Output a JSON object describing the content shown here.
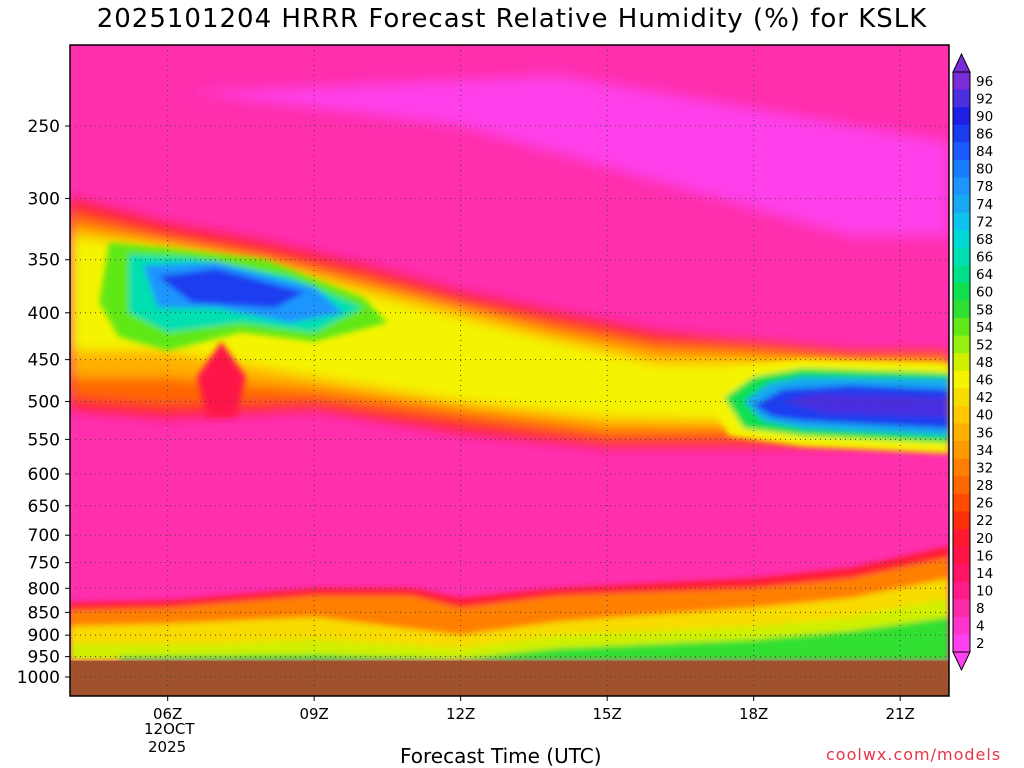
{
  "title": "2025101204 HRRR Forecast Relative Humidity (%) for KSLK",
  "credit": "coolwx.com/models",
  "date_labels": {
    "line1": "12OCT",
    "line2": "2025"
  },
  "colors": {
    "ground": "#a0522d",
    "background_rh": "#ff2fae",
    "grid": "#444444"
  },
  "chart_data": {
    "type": "heatmap",
    "title": "2025101204 HRRR Forecast Relative Humidity (%) for KSLK",
    "xlabel": "Forecast Time (UTC)",
    "ylabel": "",
    "x_ticks": [
      {
        "hour": 6,
        "label": "06Z"
      },
      {
        "hour": 9,
        "label": "09Z"
      },
      {
        "hour": 12,
        "label": "12Z"
      },
      {
        "hour": 15,
        "label": "15Z"
      },
      {
        "hour": 18,
        "label": "18Z"
      },
      {
        "hour": 21,
        "label": "21Z"
      }
    ],
    "xlim": [
      4,
      22
    ],
    "y_ticks": [
      250,
      300,
      350,
      400,
      450,
      500,
      550,
      600,
      650,
      700,
      750,
      800,
      850,
      900,
      950,
      1000
    ],
    "ylim_pressure": [
      200,
      1050
    ],
    "surface_pressure": 960,
    "colorbar": {
      "labels": [
        96,
        92,
        90,
        86,
        84,
        80,
        78,
        74,
        72,
        68,
        66,
        64,
        60,
        58,
        54,
        52,
        48,
        46,
        42,
        40,
        36,
        34,
        32,
        28,
        26,
        22,
        20,
        16,
        14,
        10,
        8,
        4,
        2
      ],
      "colors": [
        "#7a2cd9",
        "#4a2ee0",
        "#1e1ee6",
        "#1a3cf0",
        "#1a5aff",
        "#1b7bff",
        "#1c95ff",
        "#17a9f2",
        "#10c2ee",
        "#00d8d8",
        "#00e0b0",
        "#00e08a",
        "#10e050",
        "#30e030",
        "#60e818",
        "#98f010",
        "#d0f000",
        "#f4f400",
        "#f8dc00",
        "#ffc800",
        "#ffb000",
        "#ff9a00",
        "#ff8000",
        "#ff6600",
        "#ff4a00",
        "#ff2e0a",
        "#ff1a30",
        "#ff1448",
        "#ff1466",
        "#ff1c88",
        "#ff2aaa",
        "#ff34cc",
        "#ff40f0"
      ]
    },
    "moist_regions": [
      {
        "name": "upper-moist-layer",
        "hour_range": [
          4,
          10.5
        ],
        "pressure_range": [
          320,
          440
        ],
        "peak_rh": 86
      },
      {
        "name": "upper-yellow-band",
        "hour_range": [
          4,
          22
        ],
        "pressure_range": [
          380,
          560
        ],
        "peak_rh": 46
      },
      {
        "name": "midlevel-moist-layer",
        "hour_range": [
          17,
          22
        ],
        "pressure_range": [
          460,
          560
        ],
        "peak_rh": 90
      },
      {
        "name": "low-level-moist-layer",
        "hour_range": [
          4,
          22
        ],
        "pressure_range": [
          800,
          960
        ],
        "peak_rh": 60
      }
    ]
  }
}
